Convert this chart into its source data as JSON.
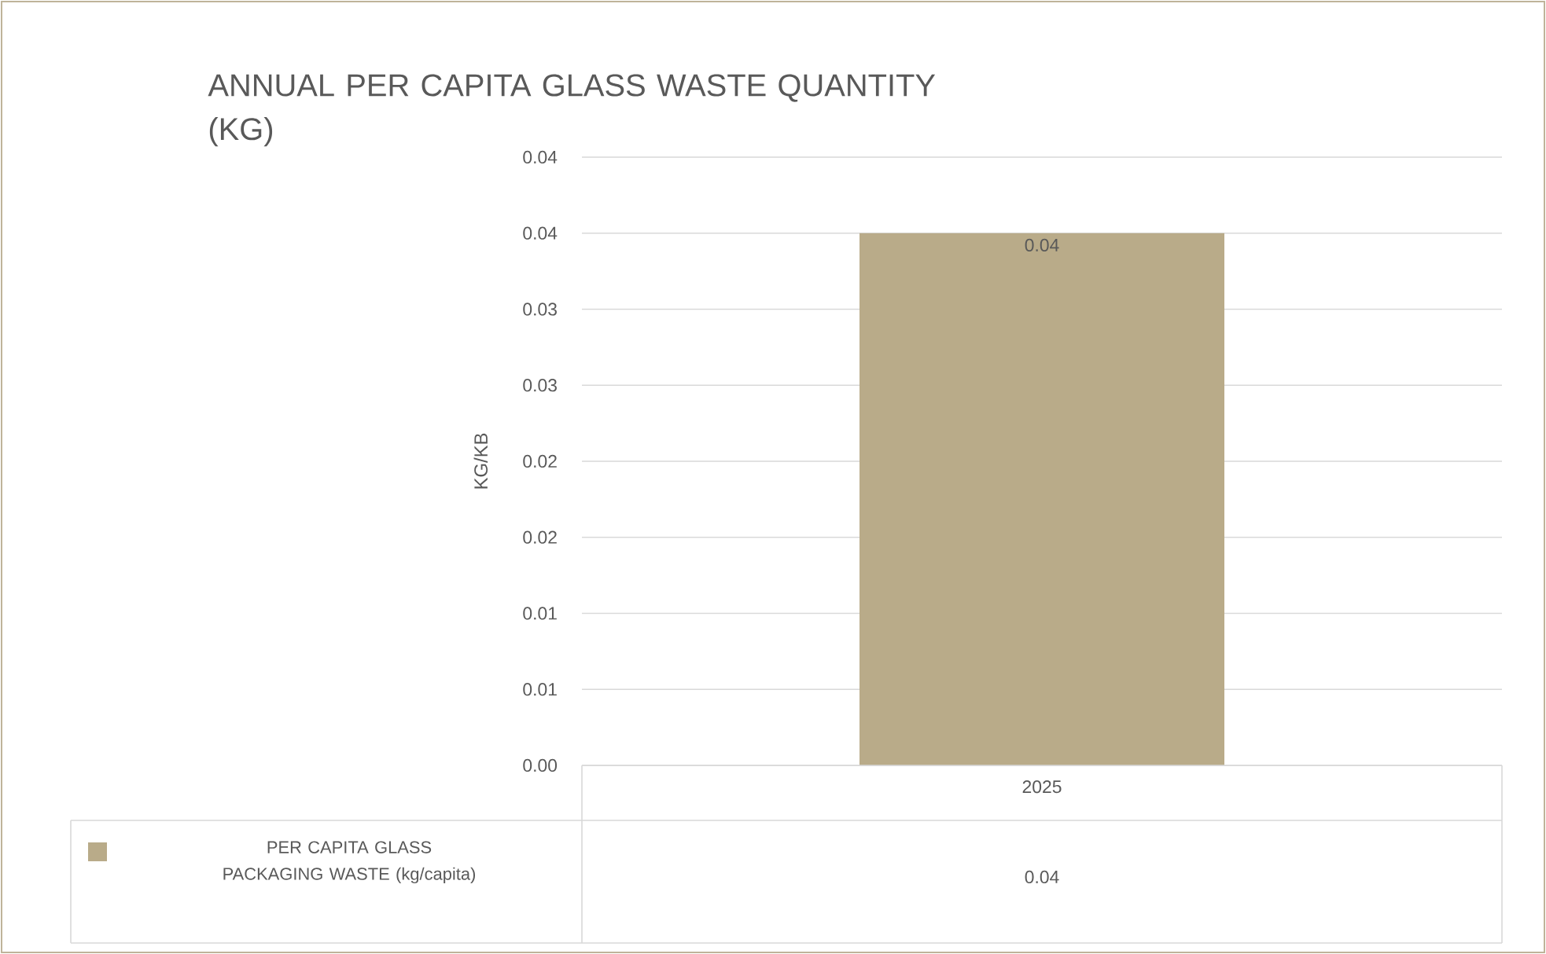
{
  "chart_data": {
    "type": "bar",
    "title": "ANNUAL PER CAPITA GLASS WASTE QUANTITY (KG)",
    "ylabel": "KG/KB",
    "categories": [
      "2025"
    ],
    "series": [
      {
        "name": "PER CAPITA GLASS PACKAGING WASTE (kg/capita)",
        "color": "#b9ab89",
        "values": [
          0.035
        ],
        "value_labels": [
          "0.04"
        ]
      }
    ],
    "ylim": [
      0,
      0.04
    ],
    "yticks": [
      {
        "value": 0,
        "label": "0.00"
      },
      {
        "value": 0.005,
        "label": "0.01"
      },
      {
        "value": 0.01,
        "label": "0.01"
      },
      {
        "value": 0.015,
        "label": "0.02"
      },
      {
        "value": 0.02,
        "label": "0.02"
      },
      {
        "value": 0.025,
        "label": "0.03"
      },
      {
        "value": 0.03,
        "label": "0.03"
      },
      {
        "value": 0.035,
        "label": "0.04"
      },
      {
        "value": 0.04,
        "label": "0.04"
      }
    ],
    "grid": "y",
    "legend": "bottom"
  }
}
